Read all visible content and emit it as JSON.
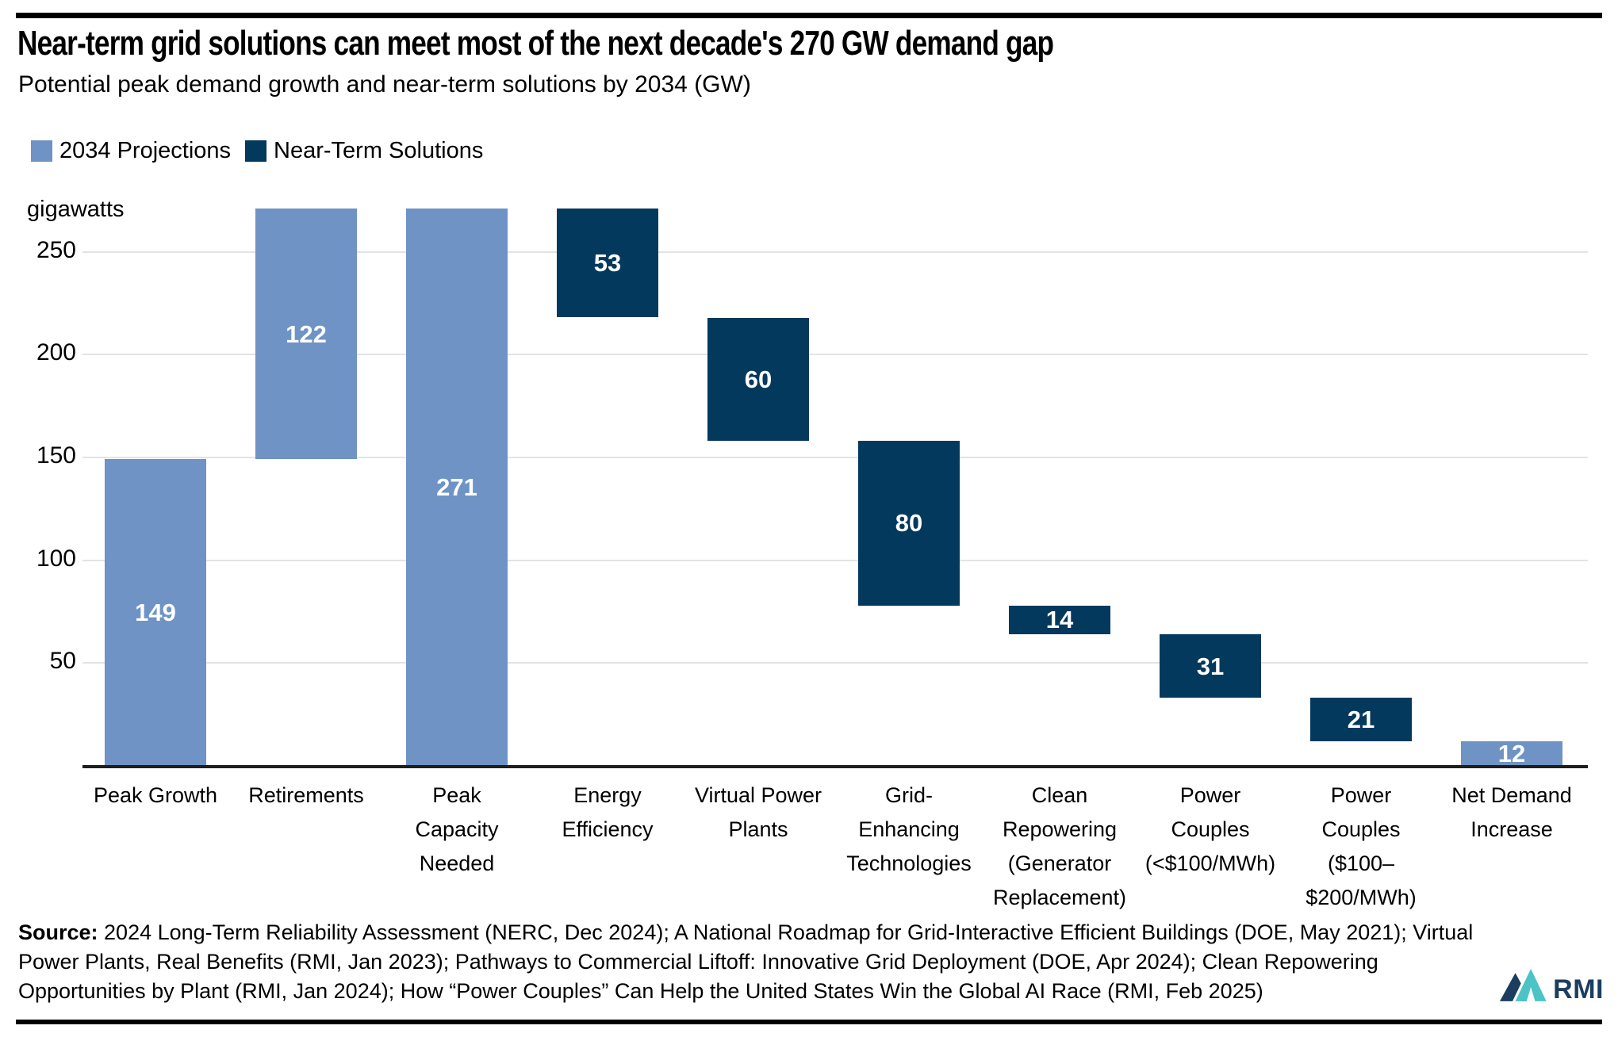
{
  "header": {
    "title": "Near-term grid solutions can meet most of the next decade's 270 GW demand gap",
    "subtitle": "Potential peak demand growth and near-term solutions by 2034 (GW)"
  },
  "legend": {
    "items": [
      {
        "label": "2034 Projections",
        "color": "#6e93c4"
      },
      {
        "label": "Near-Term Solutions",
        "color": "#04395e"
      }
    ]
  },
  "colors": {
    "projections": "#6e93c4",
    "solutions": "#04395e",
    "gridline": "#e3e3e3",
    "axis_line": "#1f1f1f",
    "rule": "#000000",
    "value_label": "#ffffff",
    "logo_navy": "#1b3d5f",
    "logo_teal": "#4cc4c6"
  },
  "chart_data": {
    "type": "bar",
    "subtype": "waterfall",
    "title": "Near-term grid solutions can meet most of the next decade's 270 GW demand gap",
    "subtitle": "Potential peak demand growth and near-term solutions by 2034 (GW)",
    "unit_label": "gigawatts",
    "xlabel": "",
    "ylabel": "gigawatts",
    "ylim": [
      0,
      271
    ],
    "y_ticks": [
      50,
      100,
      150,
      200,
      250
    ],
    "grid": "horizontal",
    "legend_position": "top-left",
    "categories": [
      "Peak Growth",
      "Retirements",
      "Peak Capacity Needed",
      "Energy Efficiency",
      "Virtual Power Plants",
      "Grid-Enhancing Technologies",
      "Clean Repowering (Generator Replacement)",
      "Power Couples (<$100/MWh)",
      "Power Couples ($100–$200/MWh)",
      "Net Demand Increase"
    ],
    "bars": [
      {
        "category": "Peak Growth",
        "value": 149,
        "start": 0,
        "end": 149,
        "series": "2034 Projections"
      },
      {
        "category": "Retirements",
        "value": 122,
        "start": 149,
        "end": 271,
        "series": "2034 Projections"
      },
      {
        "category": "Peak Capacity Needed",
        "value": 271,
        "start": 0,
        "end": 271,
        "series": "2034 Projections"
      },
      {
        "category": "Energy Efficiency",
        "value": 53,
        "start": 271,
        "end": 218,
        "series": "Near-Term Solutions"
      },
      {
        "category": "Virtual Power Plants",
        "value": 60,
        "start": 218,
        "end": 158,
        "series": "Near-Term Solutions"
      },
      {
        "category": "Grid-Enhancing Technologies",
        "value": 80,
        "start": 158,
        "end": 78,
        "series": "Near-Term Solutions"
      },
      {
        "category": "Clean Repowering (Generator Replacement)",
        "value": 14,
        "start": 78,
        "end": 64,
        "series": "Near-Term Solutions"
      },
      {
        "category": "Power Couples (<$100/MWh)",
        "value": 31,
        "start": 64,
        "end": 33,
        "series": "Near-Term Solutions"
      },
      {
        "category": "Power Couples ($100–$200/MWh)",
        "value": 21,
        "start": 33,
        "end": 12,
        "series": "Near-Term Solutions"
      },
      {
        "category": "Net Demand Increase",
        "value": 12,
        "start": 0,
        "end": 12,
        "series": "2034 Projections"
      }
    ]
  },
  "source": {
    "label": "Source:",
    "text": " 2024 Long-Term Reliability Assessment (NERC, Dec 2024); A National Roadmap for Grid-Interactive Efficient Buildings (DOE, May 2021); Virtual Power Plants, Real Benefits (RMI, Jan 2023); Pathways to Commercial Liftoff: Innovative Grid Deployment (DOE, Apr 2024); Clean Repowering Opportunities by Plant (RMI, Jan 2024); How “Power Couples” Can Help the United States Win the Global AI Race (RMI, Feb 2025)"
  },
  "logo": {
    "text": "RMI"
  }
}
